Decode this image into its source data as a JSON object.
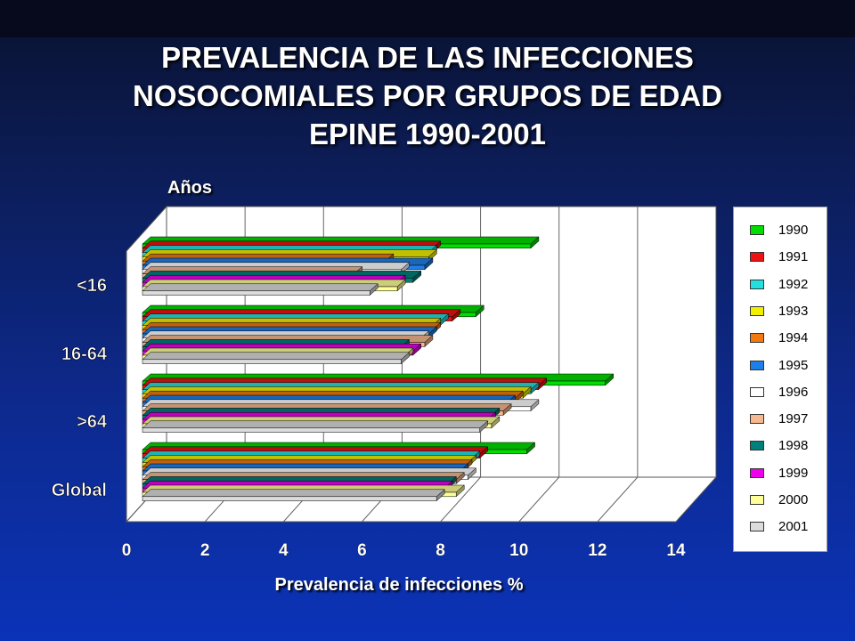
{
  "title_lines": [
    "PREVALENCIA DE LAS INFECCIONES",
    "NOSOCOMIALES POR GRUPOS DE EDAD",
    "EPINE 1990-2001"
  ],
  "chart_data": {
    "type": "bar",
    "orientation": "horizontal",
    "style": "3d",
    "title": "PREVALENCIA DE LAS INFECCIONES NOSOCOMIALES POR GRUPOS DE EDAD EPINE 1990-2001",
    "xlabel": "Prevalencia de infecciones %",
    "ylabel": "Años",
    "xlim": [
      0,
      14
    ],
    "xticks": [
      "0",
      "2",
      "4",
      "6",
      "8",
      "10",
      "12",
      "14"
    ],
    "categories": [
      "<16",
      "16-64",
      ">64",
      "Global"
    ],
    "grid": true,
    "legend_position": "right",
    "series": [
      {
        "name": "1990",
        "color": "#00dd00",
        "values": [
          10.3,
          8.9,
          12.2,
          10.2
        ]
      },
      {
        "name": "1991",
        "color": "#ee1111",
        "values": [
          7.8,
          8.3,
          10.5,
          9.0
        ]
      },
      {
        "name": "1992",
        "color": "#22e0e0",
        "values": [
          7.7,
          8.0,
          10.3,
          8.8
        ]
      },
      {
        "name": "1993",
        "color": "#f0f000",
        "values": [
          7.7,
          7.8,
          10.1,
          8.7
        ]
      },
      {
        "name": "1994",
        "color": "#f07a10",
        "values": [
          6.6,
          7.8,
          9.9,
          8.6
        ]
      },
      {
        "name": "1995",
        "color": "#1f7fe8",
        "values": [
          7.6,
          7.7,
          9.7,
          8.5
        ]
      },
      {
        "name": "1996",
        "color": "#ffffff",
        "values": [
          7.0,
          7.5,
          10.3,
          8.7
        ]
      },
      {
        "name": "1997",
        "color": "#f6b890",
        "values": [
          5.8,
          7.6,
          9.6,
          8.4
        ]
      },
      {
        "name": "1998",
        "color": "#00807a",
        "values": [
          7.3,
          7.0,
          9.3,
          8.2
        ]
      },
      {
        "name": "1999",
        "color": "#ee00ee",
        "values": [
          6.9,
          7.3,
          9.2,
          8.1
        ]
      },
      {
        "name": "2000",
        "color": "#ffff99",
        "values": [
          6.9,
          7.1,
          9.3,
          8.4
        ]
      },
      {
        "name": "2001",
        "color": "#dcdcdc",
        "values": [
          6.2,
          7.0,
          9.0,
          7.9
        ]
      }
    ]
  }
}
